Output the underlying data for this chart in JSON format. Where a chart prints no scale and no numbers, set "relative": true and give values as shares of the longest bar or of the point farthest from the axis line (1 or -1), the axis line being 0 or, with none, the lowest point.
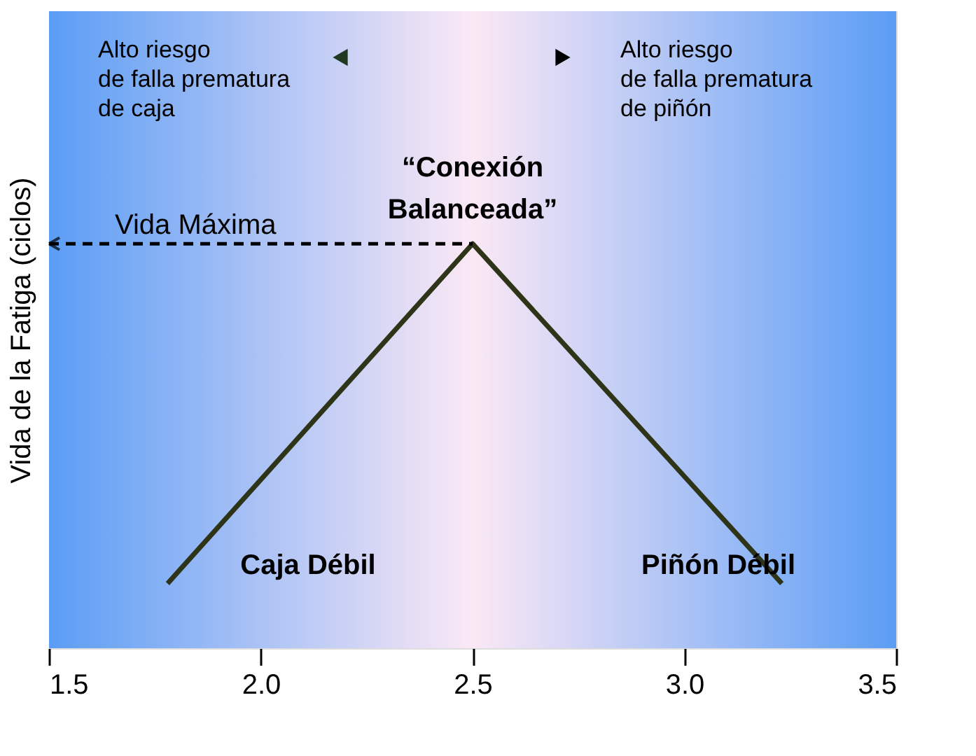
{
  "chart_data": {
    "type": "line",
    "relative": true,
    "x": [
      1.78,
      2.5,
      3.23
    ],
    "series": [
      {
        "color": "#2e3418",
        "values": [
          0.16,
          1,
          0.16
        ]
      },
      {
        "color": "#000000",
        "x": [
          1.5,
          2.5
        ],
        "values": [
          1,
          1
        ],
        "line_style": "dashed"
      }
    ],
    "xlim": [
      1.5,
      3.5
    ],
    "xticks": [
      1.5,
      {
        "value": 2,
        "label": "2.0"
      },
      2.5,
      {
        "value": 3,
        "label": "3.0"
      },
      3.5
    ],
    "ylabel": "Vida de la Fatiga (ciclos)",
    "tick_labels": "x",
    "marker": "none",
    "line_style": "solid",
    "annotations": [
      "Alto riesgo\nde falla prematura\nde caja",
      "Alto riesgo\n de falla prematura\nde piñón",
      "Vida Máxima",
      "Caja Débil",
      "Piñón Débil",
      {
        "text": "“Conexión\nBalanceada”",
        "x": 2.5,
        "y": 1
      }
    ]
  }
}
